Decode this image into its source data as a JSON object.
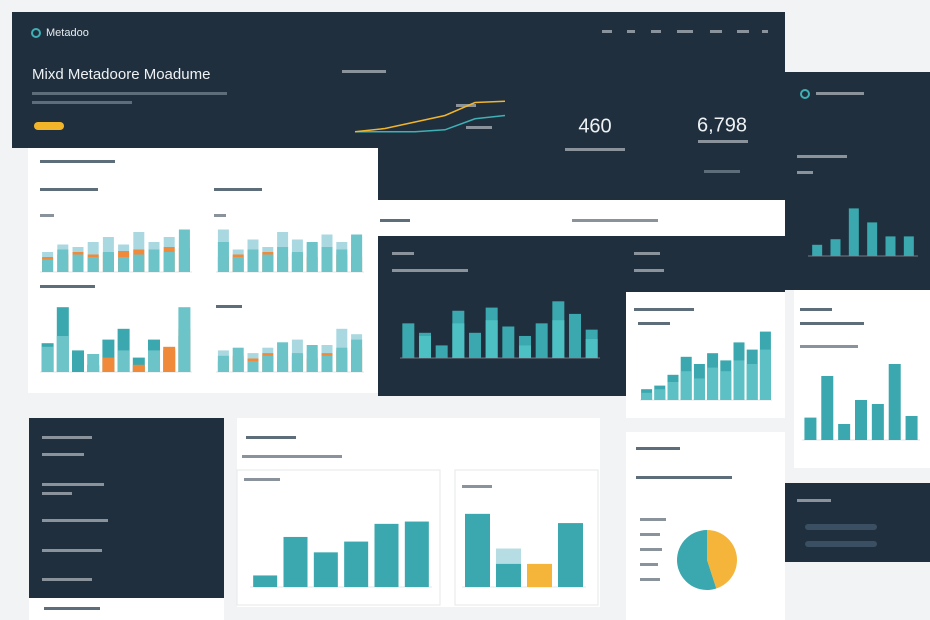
{
  "hero": {
    "brand": "Metadoo",
    "title": "Mixd Metadoore Moadume",
    "kpis": [
      "460",
      "6,798"
    ]
  },
  "charts": [
    {
      "type": "line",
      "series": [
        {
          "color": "#3fb0b4",
          "values": [
            5,
            5,
            5,
            8,
            25,
            30
          ]
        },
        {
          "color": "#f2b52a",
          "values": [
            5,
            10,
            20,
            30,
            50,
            52
          ]
        }
      ]
    },
    {
      "type": "bar",
      "series": [
        {
          "color": "#a9d8e0",
          "values": [
            40,
            55,
            50,
            60,
            70,
            55,
            80,
            60,
            70,
            65
          ]
        },
        {
          "color": "#f08a3a",
          "values": [
            30,
            35,
            40,
            35,
            38,
            42,
            45,
            40,
            50,
            48
          ]
        },
        {
          "color": "#6cc3c8",
          "values": [
            25,
            45,
            35,
            30,
            40,
            30,
            35,
            45,
            40,
            85
          ]
        }
      ]
    },
    {
      "type": "bar",
      "series": [
        {
          "color": "#a9d8e0",
          "values": [
            85,
            45,
            65,
            50,
            80,
            65,
            55,
            75,
            60,
            70
          ]
        },
        {
          "color": "#f08a3a",
          "values": [
            30,
            35,
            25,
            40,
            30,
            35,
            30,
            40,
            35,
            30
          ]
        },
        {
          "color": "#6cc3c8",
          "values": [
            60,
            30,
            45,
            35,
            50,
            40,
            60,
            50,
            45,
            75
          ]
        }
      ]
    },
    {
      "type": "bar",
      "series": [
        {
          "color": "#3aa8ae",
          "values": [
            40,
            90,
            30,
            10,
            45,
            60,
            20,
            45,
            30,
            50
          ]
        },
        {
          "color": "#f08a3a",
          "values": [
            null,
            null,
            null,
            null,
            20,
            null,
            10,
            null,
            35,
            60
          ]
        },
        {
          "color": "#6cc3c8",
          "values": [
            35,
            50,
            null,
            25,
            null,
            30,
            null,
            30,
            null,
            90
          ]
        }
      ]
    },
    {
      "type": "bar",
      "series": [
        {
          "color": "#a9d8e0",
          "values": [
            40,
            25,
            35,
            45,
            30,
            60,
            40,
            50,
            80,
            70
          ]
        },
        {
          "color": "#f08a3a",
          "values": [
            20,
            30,
            25,
            35,
            20,
            30,
            25,
            35,
            40,
            45
          ]
        },
        {
          "color": "#6cc3c8",
          "values": [
            30,
            45,
            20,
            30,
            55,
            35,
            50,
            30,
            45,
            60
          ]
        }
      ]
    },
    {
      "type": "bar",
      "series": [
        {
          "color": "#3aa8ae",
          "values": [
            55,
            40,
            20,
            75,
            40,
            80,
            50,
            35,
            55,
            90,
            70,
            45
          ]
        },
        {
          "color": "#4cc0c2",
          "values": [
            null,
            35,
            null,
            55,
            null,
            60,
            null,
            20,
            null,
            60,
            null,
            30
          ]
        }
      ]
    },
    {
      "type": "bar",
      "series": [
        {
          "color": "#3aa8ae",
          "values": [
            15,
            20,
            35,
            60,
            50,
            65,
            55,
            80,
            70,
            95
          ]
        },
        {
          "color": "#5dc0c4",
          "values": [
            10,
            15,
            25,
            40,
            30,
            45,
            40,
            55,
            50,
            70
          ]
        }
      ]
    },
    {
      "type": "bar",
      "series": [
        {
          "color": "#3aa8ae",
          "values": [
            20,
            30,
            85,
            60,
            35,
            35
          ]
        }
      ]
    },
    {
      "type": "bar",
      "series": [
        {
          "color": "#3aa8ae",
          "values": [
            28,
            80,
            20,
            50,
            45,
            95,
            30
          ]
        }
      ]
    },
    {
      "type": "bar",
      "series": [
        {
          "color": "#3aa8ae",
          "values": [
            15,
            65,
            45,
            59,
            82,
            85
          ]
        }
      ]
    },
    {
      "type": "bar",
      "series": [
        {
          "color": "#b7dde4",
          "values": [
            null,
            50,
            null,
            null
          ]
        },
        {
          "color": "#3aa8ae",
          "values": [
            95,
            30,
            null,
            83
          ]
        },
        {
          "color": "#f4b53a",
          "values": [
            null,
            null,
            30,
            null
          ]
        }
      ]
    },
    {
      "type": "pie",
      "series": [
        {
          "color": "#f4b53a",
          "values": [
            45
          ]
        },
        {
          "color": "#3aa8ae",
          "values": [
            55
          ]
        }
      ]
    }
  ]
}
